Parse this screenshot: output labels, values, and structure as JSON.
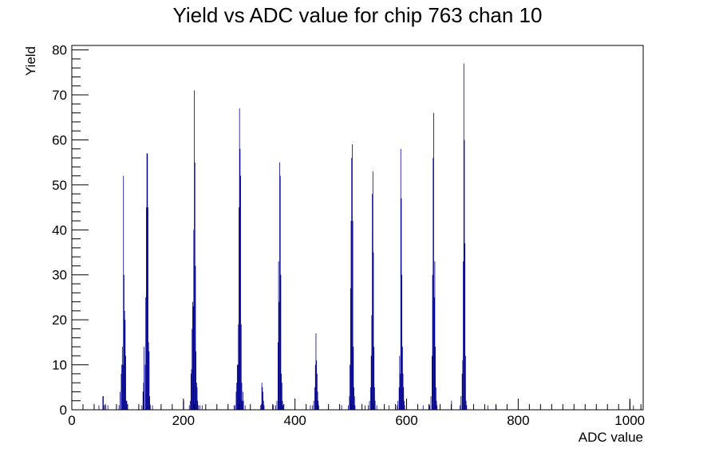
{
  "chart_data": {
    "type": "bar",
    "title": "Yield vs ADC value for chip 763 chan 10",
    "xlabel": "ADC value",
    "ylabel": "Yield",
    "xlim": [
      0,
      1024
    ],
    "ylim": [
      0,
      81
    ],
    "x_ticks": [
      0,
      200,
      400,
      600,
      800,
      1000
    ],
    "y_ticks": [
      0,
      10,
      20,
      30,
      40,
      50,
      60,
      70,
      80
    ],
    "x_tick_labels": [
      "0",
      "200",
      "400",
      "600",
      "800",
      "1000"
    ],
    "y_tick_labels": [
      "0",
      "10",
      "20",
      "30",
      "40",
      "50",
      "60",
      "70",
      "80"
    ],
    "grid": false,
    "legend": "none",
    "line_color": "#00008b",
    "series": [
      {
        "bins": [
          [
            48,
            1
          ],
          [
            55,
            3
          ],
          [
            56,
            3
          ],
          [
            57,
            1
          ],
          [
            60,
            1
          ],
          [
            64,
            1
          ],
          [
            84,
            1
          ],
          [
            86,
            4
          ],
          [
            88,
            8
          ],
          [
            89,
            10
          ],
          [
            90,
            14
          ],
          [
            91,
            10
          ],
          [
            92,
            52
          ],
          [
            93,
            30
          ],
          [
            94,
            22
          ],
          [
            95,
            20
          ],
          [
            96,
            12
          ],
          [
            97,
            2
          ],
          [
            98,
            2
          ],
          [
            125,
            1
          ],
          [
            127,
            4
          ],
          [
            128,
            6
          ],
          [
            129,
            14
          ],
          [
            131,
            10
          ],
          [
            132,
            25
          ],
          [
            133,
            45
          ],
          [
            134,
            57
          ],
          [
            135,
            57
          ],
          [
            136,
            45
          ],
          [
            137,
            15
          ],
          [
            138,
            13
          ],
          [
            139,
            3
          ],
          [
            140,
            1
          ],
          [
            144,
            1
          ],
          [
            200,
            2
          ],
          [
            210,
            1
          ],
          [
            212,
            2
          ],
          [
            213,
            8
          ],
          [
            214,
            9
          ],
          [
            215,
            18
          ],
          [
            216,
            24
          ],
          [
            217,
            23
          ],
          [
            218,
            40
          ],
          [
            219,
            71
          ],
          [
            220,
            55
          ],
          [
            221,
            32
          ],
          [
            222,
            13
          ],
          [
            223,
            6
          ],
          [
            224,
            5
          ],
          [
            225,
            2
          ],
          [
            226,
            1
          ],
          [
            229,
            1
          ],
          [
            233,
            1
          ],
          [
            290,
            1
          ],
          [
            292,
            1
          ],
          [
            294,
            4
          ],
          [
            295,
            6
          ],
          [
            296,
            10
          ],
          [
            297,
            10
          ],
          [
            298,
            19
          ],
          [
            299,
            45
          ],
          [
            300,
            67
          ],
          [
            301,
            58
          ],
          [
            302,
            52
          ],
          [
            303,
            19
          ],
          [
            304,
            6
          ],
          [
            305,
            2
          ],
          [
            306,
            4
          ],
          [
            307,
            2
          ],
          [
            310,
            1
          ],
          [
            338,
            1
          ],
          [
            340,
            6
          ],
          [
            341,
            5
          ],
          [
            342,
            4
          ],
          [
            343,
            2
          ],
          [
            344,
            1
          ],
          [
            361,
            1
          ],
          [
            365,
            1
          ],
          [
            367,
            2
          ],
          [
            369,
            15
          ],
          [
            370,
            33
          ],
          [
            371,
            24
          ],
          [
            372,
            55
          ],
          [
            373,
            52
          ],
          [
            374,
            30
          ],
          [
            375,
            8
          ],
          [
            376,
            6
          ],
          [
            377,
            2
          ],
          [
            378,
            1
          ],
          [
            427,
            1
          ],
          [
            431,
            1
          ],
          [
            433,
            2
          ],
          [
            435,
            5
          ],
          [
            436,
            10
          ],
          [
            437,
            17
          ],
          [
            438,
            11
          ],
          [
            439,
            8
          ],
          [
            440,
            4
          ],
          [
            441,
            2
          ],
          [
            442,
            1
          ],
          [
            483,
            1
          ],
          [
            495,
            1
          ],
          [
            497,
            3
          ],
          [
            498,
            10
          ],
          [
            499,
            27
          ],
          [
            500,
            42
          ],
          [
            501,
            56
          ],
          [
            502,
            59
          ],
          [
            503,
            42
          ],
          [
            504,
            14
          ],
          [
            505,
            5
          ],
          [
            506,
            3
          ],
          [
            507,
            1
          ],
          [
            525,
            1
          ],
          [
            531,
            1
          ],
          [
            533,
            2
          ],
          [
            535,
            5
          ],
          [
            536,
            12
          ],
          [
            537,
            21
          ],
          [
            538,
            48
          ],
          [
            539,
            53
          ],
          [
            540,
            35
          ],
          [
            541,
            14
          ],
          [
            542,
            5
          ],
          [
            543,
            2
          ],
          [
            546,
            1
          ],
          [
            568,
            1
          ],
          [
            582,
            1
          ],
          [
            584,
            2
          ],
          [
            586,
            5
          ],
          [
            587,
            12
          ],
          [
            588,
            8
          ],
          [
            589,
            58
          ],
          [
            590,
            47
          ],
          [
            591,
            30
          ],
          [
            592,
            14
          ],
          [
            593,
            8
          ],
          [
            594,
            5
          ],
          [
            595,
            2
          ],
          [
            596,
            1
          ],
          [
            629,
            1
          ],
          [
            641,
            1
          ],
          [
            643,
            3
          ],
          [
            645,
            12
          ],
          [
            646,
            30
          ],
          [
            647,
            56
          ],
          [
            648,
            66
          ],
          [
            649,
            25
          ],
          [
            650,
            33
          ],
          [
            651,
            14
          ],
          [
            652,
            5
          ],
          [
            653,
            2
          ],
          [
            654,
            1
          ],
          [
            680,
            2
          ],
          [
            695,
            1
          ],
          [
            697,
            3
          ],
          [
            699,
            8
          ],
          [
            700,
            11
          ],
          [
            701,
            33
          ],
          [
            702,
            77
          ],
          [
            703,
            60
          ],
          [
            704,
            37
          ],
          [
            705,
            12
          ],
          [
            706,
            2
          ],
          [
            707,
            1
          ],
          [
            745,
            1
          ],
          [
            760,
            1
          ],
          [
            1000,
            2
          ],
          [
            1006,
            1
          ]
        ]
      }
    ]
  }
}
